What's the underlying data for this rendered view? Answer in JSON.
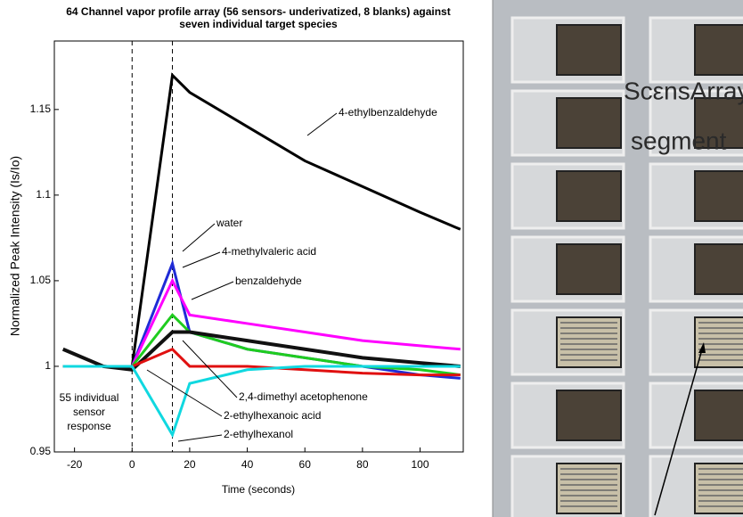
{
  "chart_data": {
    "type": "line",
    "title": "64 Channel vapor profile array (56 sensors- underivatized, 8 blanks) against seven individual target species",
    "x_label": "Time (seconds)",
    "y_label": "Normalized Peak Intensity (Is/Io)",
    "xlim": [
      -27,
      115
    ],
    "xticks": [
      -20,
      0,
      20,
      40,
      60,
      80,
      100
    ],
    "ylim": [
      0.95,
      1.19
    ],
    "yticks": [
      0.95,
      1,
      1.05,
      1.1,
      1.15
    ],
    "vlines": [
      0,
      14
    ],
    "annotation": "55 individual sensor response",
    "x": [
      -24,
      -10,
      0,
      14,
      20,
      40,
      60,
      80,
      100,
      114
    ],
    "series": [
      {
        "name": "4-ethylbenzaldehyde",
        "color": "#000000",
        "values": [
          1.0,
          1.0,
          1.0,
          1.17,
          1.16,
          1.14,
          1.12,
          1.105,
          1.09,
          1.08
        ]
      },
      {
        "name": "water",
        "color": "#1f2bd6",
        "values": [
          1.0,
          1.0,
          1.0,
          1.06,
          1.02,
          1.01,
          1.005,
          1.0,
          0.995,
          0.993
        ]
      },
      {
        "name": "4-methylvaleric acid",
        "color": "#ff00ff",
        "values": [
          1.0,
          1.0,
          1.0,
          1.05,
          1.03,
          1.025,
          1.02,
          1.015,
          1.012,
          1.01
        ]
      },
      {
        "name": "benzaldehyde",
        "color": "#1fcc1f",
        "values": [
          1.0,
          1.0,
          1.0,
          1.03,
          1.02,
          1.01,
          1.005,
          1.0,
          0.998,
          0.995
        ]
      },
      {
        "name": "2,4-dimethyl acetophenone",
        "color": "#111111",
        "values": [
          1.01,
          1.0,
          0.998,
          1.02,
          1.02,
          1.015,
          1.01,
          1.005,
          1.002,
          1.0
        ]
      },
      {
        "name": "2-ethylhexanoic acid",
        "color": "#e01010",
        "values": [
          1.0,
          1.0,
          1.0,
          1.01,
          1.0,
          1.0,
          0.998,
          0.996,
          0.995,
          0.995
        ]
      },
      {
        "name": "2-ethylhexanol",
        "color": "#10d8e0",
        "values": [
          1.0,
          1.0,
          1.0,
          0.96,
          0.99,
          0.998,
          1.0,
          1.0,
          1.0,
          1.0
        ]
      }
    ]
  },
  "photo": {
    "label_line1": "ScεnsArray",
    "label_line2": "segment"
  }
}
